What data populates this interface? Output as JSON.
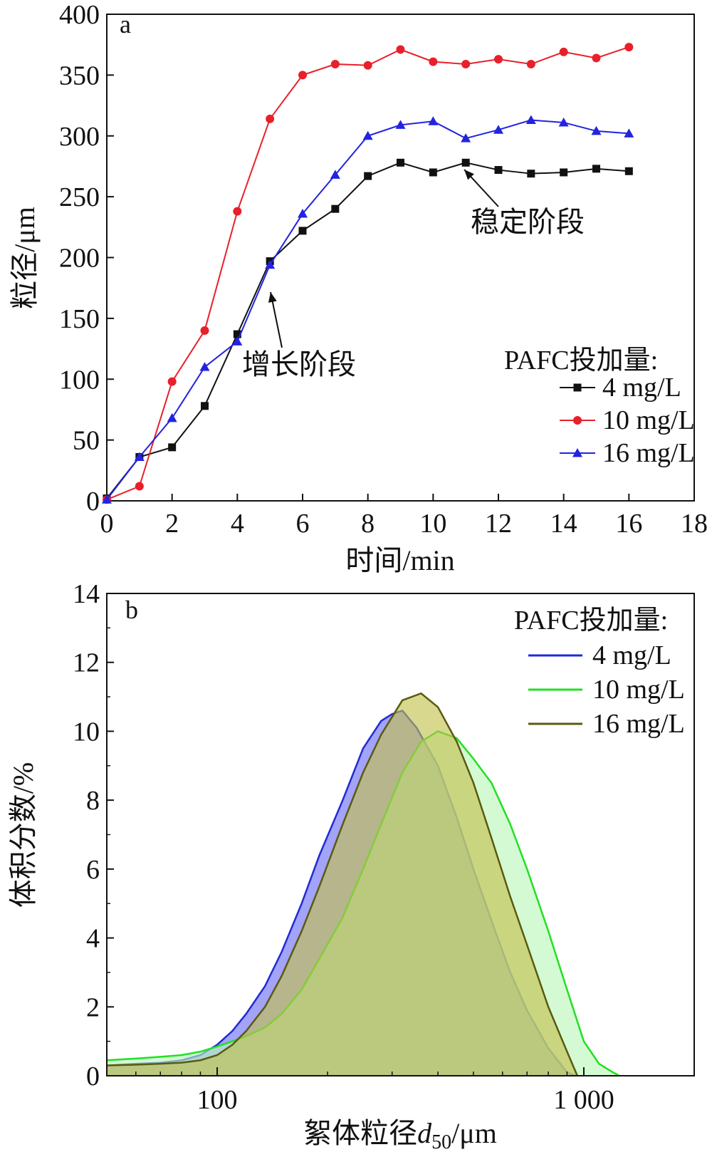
{
  "chart_data": [
    {
      "type": "line",
      "panel_label": "a",
      "xlabel": "时间/min",
      "ylabel": "粒径/μm",
      "xlim": [
        0,
        18
      ],
      "ylim": [
        0,
        400
      ],
      "x_ticks": [
        "0",
        "2",
        "4",
        "6",
        "8",
        "10",
        "12",
        "14",
        "16",
        "18"
      ],
      "y_ticks": [
        "0",
        "50",
        "100",
        "150",
        "200",
        "250",
        "300",
        "350",
        "400"
      ],
      "grid": false,
      "legend_position": "right",
      "legend_title": "PAFC投加量:",
      "x": [
        0,
        1,
        2,
        3,
        4,
        5,
        6,
        7,
        8,
        9,
        10,
        11,
        12,
        13,
        14,
        15,
        16
      ],
      "series": [
        {
          "name": "4 mg/L",
          "marker": "square",
          "color": "#111111",
          "values": [
            2,
            36,
            44,
            78,
            137,
            197,
            222,
            240,
            267,
            278,
            270,
            278,
            272,
            269,
            270,
            273,
            271
          ]
        },
        {
          "name": "10 mg/L",
          "marker": "circle",
          "color": "#e8202a",
          "values": [
            1,
            12,
            98,
            140,
            238,
            314,
            350,
            359,
            358,
            371,
            361,
            359,
            363,
            359,
            369,
            364,
            373
          ]
        },
        {
          "name": "16 mg/L",
          "marker": "triangle",
          "color": "#2323e0",
          "values": [
            1,
            36,
            68,
            110,
            131,
            194,
            236,
            268,
            300,
            309,
            312,
            298,
            305,
            313,
            311,
            304,
            302
          ]
        }
      ],
      "annotations": [
        {
          "text": "增长阶段",
          "arrow_to": [
            5,
            168
          ]
        },
        {
          "text": "稳定阶段",
          "arrow_to": [
            11,
            268
          ]
        }
      ]
    },
    {
      "type": "area",
      "panel_label": "b",
      "xlabel_prefix": "絮体粒径",
      "xlabel_var": "d",
      "xlabel_sub": "50",
      "xlabel_suffix": "/μm",
      "ylabel": "体积分数/%",
      "x_scale": "log",
      "xlim": [
        50,
        2000
      ],
      "ylim": [
        0,
        14
      ],
      "x_ticks": [
        {
          "value": 100,
          "label": "100"
        },
        {
          "value": 1000,
          "label": "1 000"
        }
      ],
      "y_ticks": [
        "0",
        "2",
        "4",
        "6",
        "8",
        "10",
        "12",
        "14"
      ],
      "grid": false,
      "legend_position": "top-right",
      "legend_title": "PAFC投加量:",
      "series": [
        {
          "name": "4  mg/L",
          "color": "#1f2bd8",
          "fill": "#6b6bf2",
          "x": [
            50,
            60,
            70,
            80,
            90,
            100,
            110,
            120,
            135,
            150,
            170,
            190,
            220,
            250,
            280,
            300,
            320,
            350,
            400,
            450,
            500,
            560,
            630,
            700,
            800,
            900,
            950
          ],
          "values": [
            0.3,
            0.35,
            0.38,
            0.45,
            0.6,
            0.9,
            1.3,
            1.8,
            2.6,
            3.6,
            5.0,
            6.4,
            8.0,
            9.5,
            10.3,
            10.5,
            10.6,
            10.1,
            9.0,
            7.5,
            6.0,
            4.5,
            3.0,
            1.9,
            0.8,
            0.1,
            0
          ]
        },
        {
          "name": "10  mg/L",
          "color": "#22e022",
          "fill": "#b9f7b9",
          "x": [
            50,
            60,
            70,
            80,
            90,
            100,
            110,
            120,
            135,
            150,
            170,
            190,
            220,
            250,
            280,
            320,
            360,
            400,
            450,
            500,
            560,
            630,
            700,
            800,
            900,
            1000,
            1100,
            1200,
            1250
          ],
          "values": [
            0.45,
            0.5,
            0.55,
            0.6,
            0.7,
            0.85,
            1.0,
            1.15,
            1.4,
            1.8,
            2.5,
            3.4,
            4.6,
            6.0,
            7.3,
            8.8,
            9.7,
            10.0,
            9.8,
            9.2,
            8.5,
            7.3,
            6.0,
            4.2,
            2.5,
            1.0,
            0.35,
            0.1,
            0
          ]
        },
        {
          "name": "16  mg/L",
          "color": "#5a5a10",
          "fill": "#c2c04a",
          "x": [
            50,
            60,
            70,
            80,
            90,
            100,
            110,
            120,
            135,
            150,
            170,
            190,
            220,
            250,
            280,
            320,
            360,
            400,
            450,
            500,
            560,
            630,
            700,
            800,
            900,
            960
          ],
          "values": [
            0.3,
            0.32,
            0.35,
            0.38,
            0.45,
            0.6,
            0.9,
            1.3,
            2.0,
            2.9,
            4.2,
            5.5,
            7.3,
            8.8,
            9.9,
            10.9,
            11.1,
            10.7,
            9.7,
            8.5,
            6.9,
            5.2,
            3.8,
            2.0,
            0.7,
            0
          ]
        }
      ]
    }
  ]
}
